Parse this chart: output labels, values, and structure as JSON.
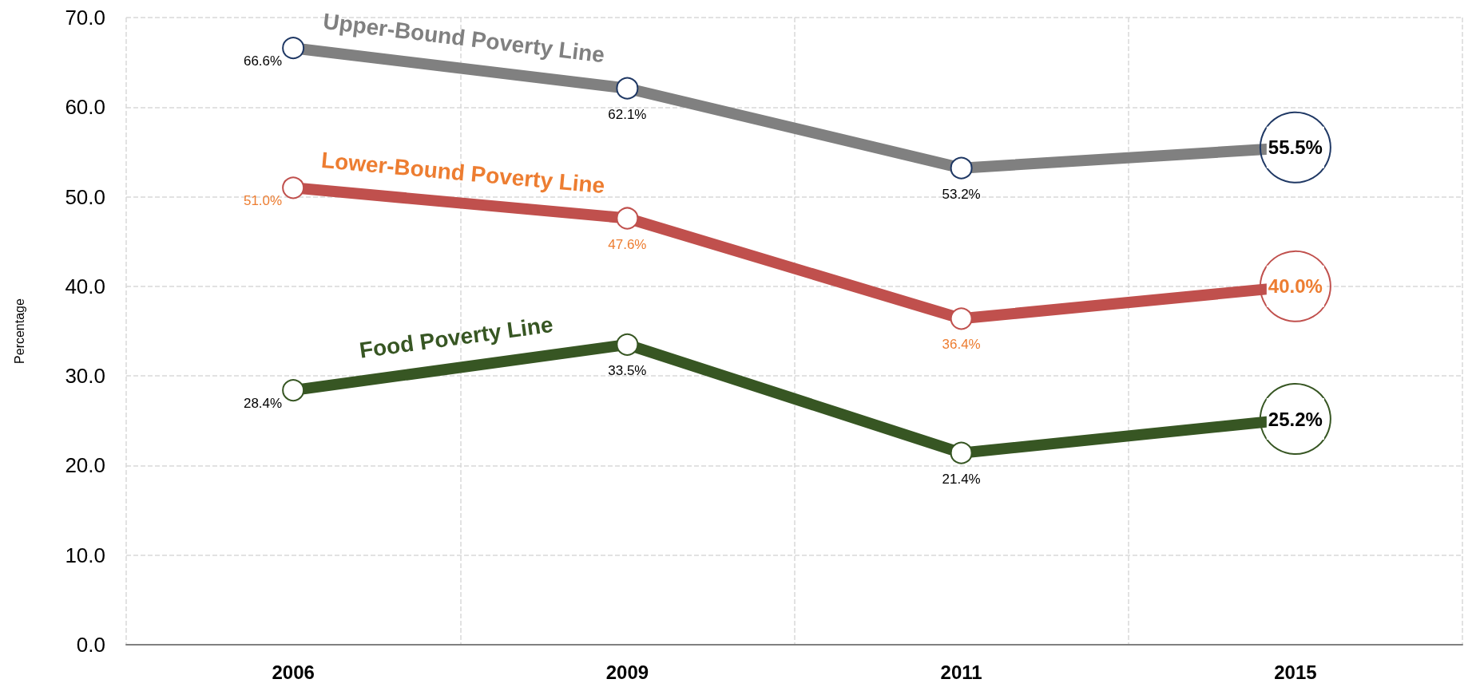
{
  "chart_data": {
    "type": "line",
    "ylabel": "Percentage",
    "categories": [
      "2006",
      "2009",
      "2011",
      "2015"
    ],
    "series": [
      {
        "name": "Upper-Bound Poverty Line",
        "color": "#808080",
        "values": [
          66.6,
          62.1,
          53.2,
          55.5
        ],
        "value_labels": [
          "66.6%",
          "62.1%",
          "53.2%",
          "55.5%"
        ]
      },
      {
        "name": "Lower-Bound Poverty Line",
        "color": "#c0504d",
        "values": [
          51.0,
          47.6,
          36.4,
          40.0
        ],
        "value_labels": [
          "51.0%",
          "47.6%",
          "36.4%",
          "40.0%"
        ]
      },
      {
        "name": "Food Poverty Line",
        "color": "#375623",
        "values": [
          28.4,
          33.5,
          21.4,
          25.2
        ],
        "value_labels": [
          "28.4%",
          "33.5%",
          "21.4%",
          "25.2%"
        ]
      }
    ],
    "ylim": [
      0,
      70
    ],
    "yticks": [
      {
        "value": 0,
        "label": "0.0"
      },
      {
        "value": 10,
        "label": "10.0"
      },
      {
        "value": 20,
        "label": "20.0"
      },
      {
        "value": 30,
        "label": "30.0"
      },
      {
        "value": 40,
        "label": "40.0"
      },
      {
        "value": 50,
        "label": "50.0"
      },
      {
        "value": 60,
        "label": "60.0"
      },
      {
        "value": 70,
        "label": "70.0"
      }
    ],
    "grid": true,
    "marker": "circle",
    "line_style": "solid"
  }
}
